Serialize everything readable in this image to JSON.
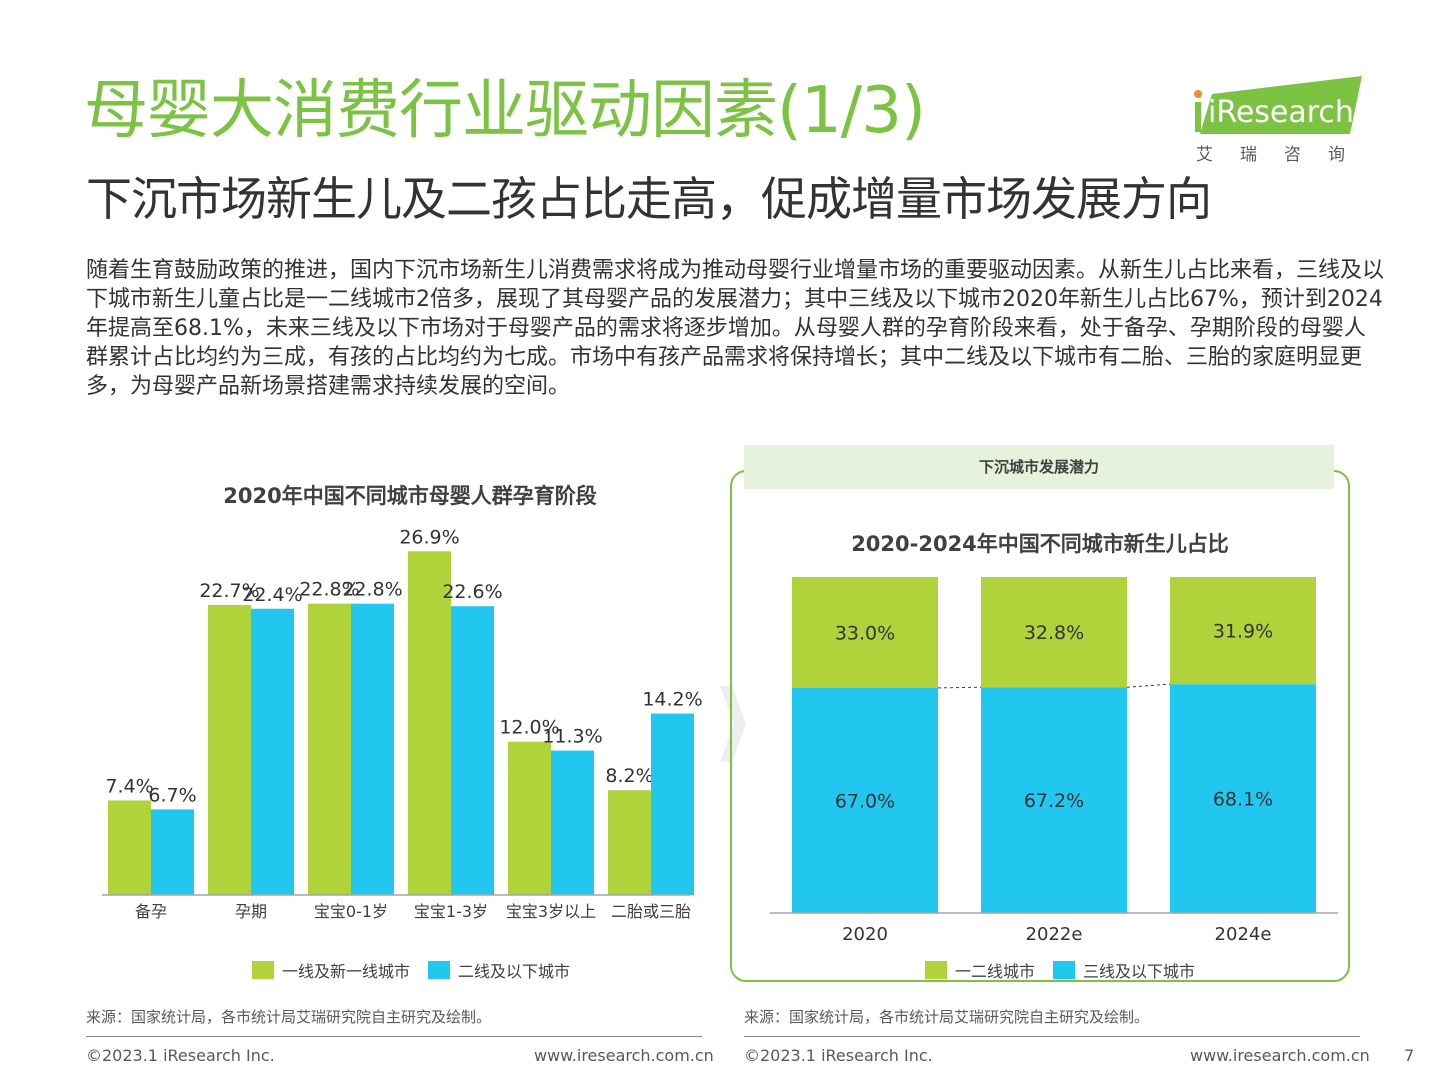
{
  "header": {
    "title": "母婴大消费行业驱动因素(1/3)",
    "subtitle": "下沉市场新生儿及二孩占比走高，促成增量市场发展方向",
    "logo_text": "iResearch",
    "logo_cn": "艾瑞咨询"
  },
  "intro": "随着生育鼓励政策的推进，国内下沉市场新生儿消费需求将成为推动母婴行业增量市场的重要驱动因素。从新生儿占比来看，三线及以下城市新生儿童占比是一二线城市2倍多，展现了其母婴产品的发展潜力；其中三线及以下城市2020年新生儿占比67%，预计到2024年提高至68.1%，未来三线及以下市场对于母婴产品的需求将逐步增加。从母婴人群的孕育阶段来看，处于备孕、孕期阶段的母婴人群累计占比均约为三成，有孩的占比均约为七成。市场中有孩产品需求将保持增长；其中二线及以下城市有二胎、三胎的家庭明显更多，为母婴产品新场景搭建需求持续发展的空间。",
  "colors": {
    "green": "#b0d23a",
    "blue": "#22c7ef",
    "brand": "#7cc243"
  },
  "chart_data": [
    {
      "type": "bar",
      "title": "2020年中国不同城市母婴人群孕育阶段",
      "categories": [
        "备孕",
        "孕期",
        "宝宝0-1岁",
        "宝宝1-3岁",
        "宝宝3岁以上",
        "二胎或三胎"
      ],
      "series": [
        {
          "name": "一线及新一线城市",
          "values": [
            7.4,
            22.7,
            22.8,
            26.9,
            12.0,
            8.2
          ],
          "labels": [
            "7.4%",
            "22.7%",
            "22.8%",
            "26.9%",
            "12.0%",
            "8.2%"
          ]
        },
        {
          "name": "二线及以下城市",
          "values": [
            6.7,
            22.4,
            22.8,
            22.6,
            11.3,
            14.2
          ],
          "labels": [
            "6.7%",
            "22.4%",
            "22.8%",
            "22.6%",
            "11.3%",
            "14.2%"
          ]
        }
      ],
      "ylim": [
        0,
        27
      ],
      "grid": false,
      "legend": "bottom"
    },
    {
      "type": "bar",
      "stacked": true,
      "title": "2020-2024年中国不同城市新生儿占比",
      "categories": [
        "2020",
        "2022e",
        "2024e"
      ],
      "series": [
        {
          "name": "三线及以下城市",
          "values": [
            67.0,
            67.2,
            68.1
          ],
          "labels": [
            "67.0%",
            "67.2%",
            "68.1%"
          ]
        },
        {
          "name": "一二线城市",
          "values": [
            33.0,
            32.8,
            31.9
          ],
          "labels": [
            "33.0%",
            "32.8%",
            "31.9%"
          ]
        }
      ],
      "ylim": [
        0,
        100
      ],
      "grid": false,
      "legend": "bottom"
    }
  ],
  "left_legend": [
    "一线及新一线城市",
    "二线及以下城市"
  ],
  "right_panel": {
    "header": "下沉城市发展潜力",
    "legend": [
      "一二线城市",
      "三线及以下城市"
    ]
  },
  "footer": {
    "source": "来源：国家统计局，各市统计局艾瑞研究院自主研究及绘制。",
    "copyright": "©2023.1 iResearch Inc.",
    "website": "www.iresearch.com.cn",
    "page": "7"
  }
}
